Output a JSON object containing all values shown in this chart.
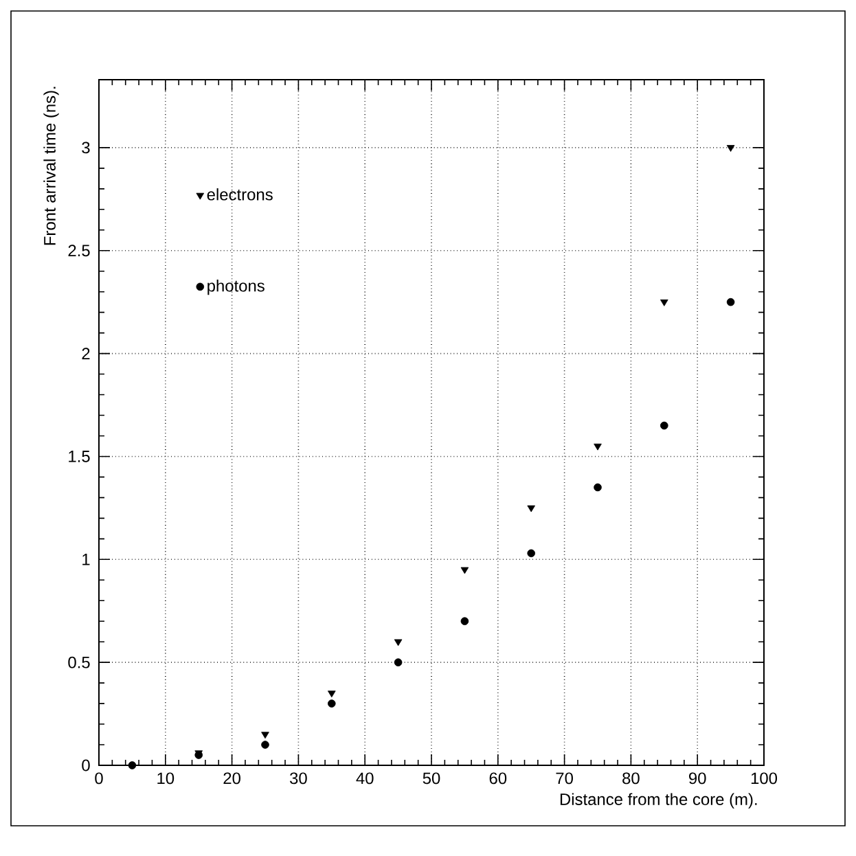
{
  "chart_data": {
    "type": "scatter",
    "xlabel": "Distance from the core (m).",
    "ylabel": "Front arrival time (ns).",
    "x": [
      5,
      15,
      25,
      35,
      45,
      55,
      65,
      75,
      85,
      95
    ],
    "series": [
      {
        "name": "electrons",
        "color": "#000000",
        "marker": "triangle",
        "values": [
          null,
          0.06,
          0.15,
          0.35,
          0.6,
          0.95,
          1.25,
          1.55,
          2.25,
          3.0
        ]
      },
      {
        "name": "photons",
        "color": "#000000",
        "marker": "circle",
        "values": [
          0,
          0.05,
          0.1,
          0.3,
          0.5,
          0.7,
          1.03,
          1.35,
          1.65,
          2.25
        ]
      }
    ],
    "xlim": [
      0,
      100
    ],
    "xticks": [
      0,
      10,
      20,
      30,
      40,
      50,
      60,
      70,
      80,
      90,
      100
    ],
    "ylim": [
      0,
      3.33
    ],
    "yticks": [
      0,
      0.5,
      1,
      1.5,
      2,
      2.5,
      3
    ],
    "grid": true,
    "legend": "top left"
  }
}
